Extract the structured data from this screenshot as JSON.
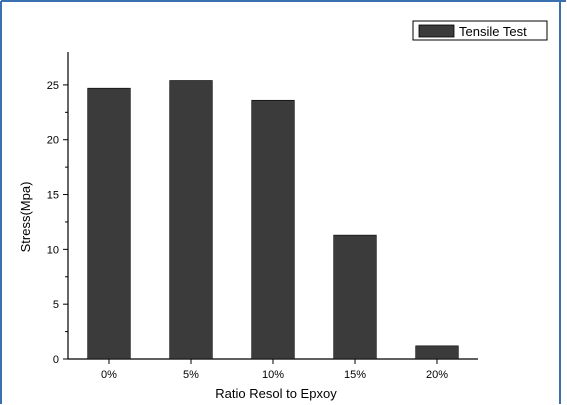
{
  "chart_data": {
    "type": "bar",
    "categories": [
      "0%",
      "5%",
      "10%",
      "15%",
      "20%"
    ],
    "series": [
      {
        "name": "Tensile Test",
        "values": [
          24.7,
          25.4,
          23.6,
          11.3,
          1.2
        ]
      }
    ],
    "xlabel": "Ratio Resol to Epxoy",
    "ylabel": "Stress(Mpa)",
    "ylim": [
      0,
      28
    ],
    "yticks": [
      0,
      5,
      10,
      15,
      20,
      25
    ],
    "grid": false,
    "legend_position": "top-right",
    "colors": {
      "bar": "#3b3b3b",
      "border": "#3a6fb0"
    }
  }
}
